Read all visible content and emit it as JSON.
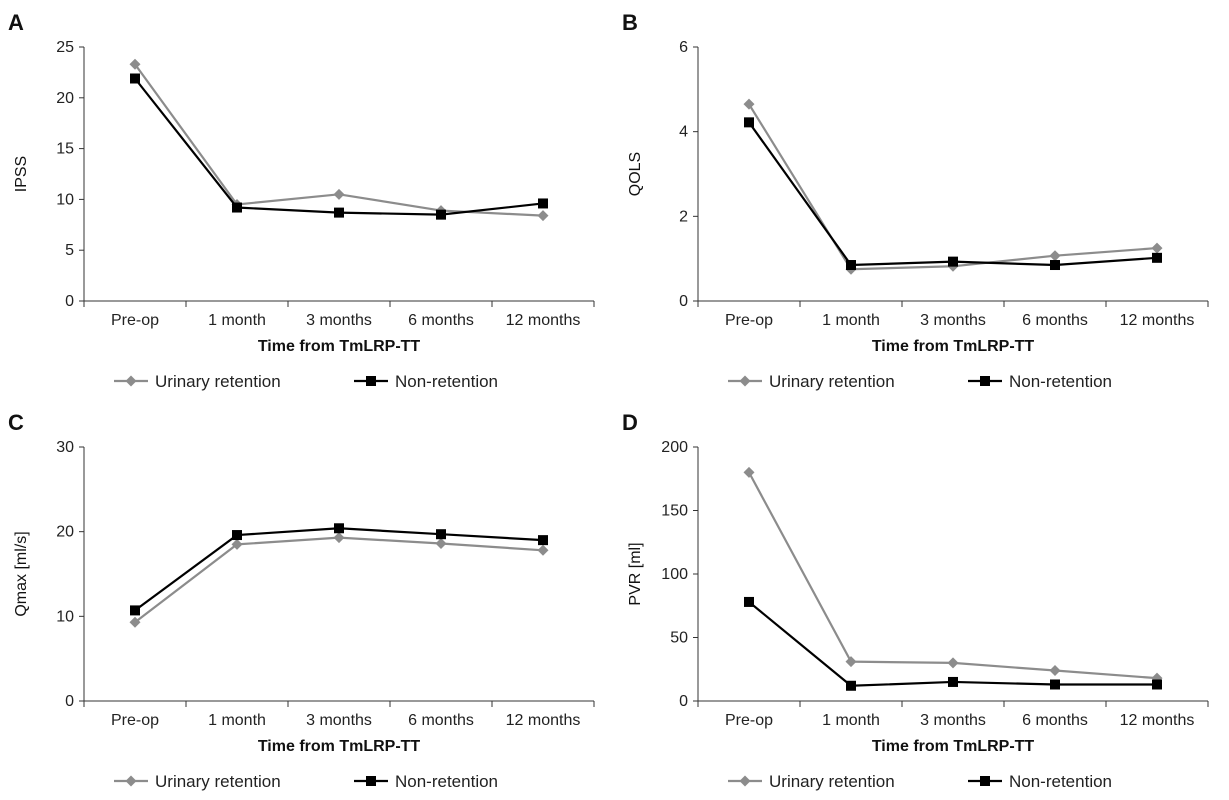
{
  "colors": {
    "urinary_retention": "#8c8c8c",
    "non_retention": "#000000"
  },
  "legend_markers": {
    "urinary_retention": "diamond",
    "non_retention": "square"
  },
  "chart_data": [
    {
      "panel": "A",
      "type": "line",
      "categories": [
        "Pre-op",
        "1 month",
        "3 months",
        "6 months",
        "12 months"
      ],
      "xlabel": "Time from TmLRP-TT",
      "ylabel": "IPSS",
      "ylim": [
        0,
        25
      ],
      "yticks": [
        0,
        5,
        10,
        15,
        20,
        25
      ],
      "grid": false,
      "legend": "bottom",
      "series": [
        {
          "name": "Urinary retention",
          "values": [
            23.3,
            9.5,
            10.5,
            8.9,
            8.4
          ]
        },
        {
          "name": "Non-retention",
          "values": [
            21.9,
            9.2,
            8.7,
            8.5,
            9.6
          ]
        }
      ]
    },
    {
      "panel": "B",
      "type": "line",
      "categories": [
        "Pre-op",
        "1 month",
        "3 months",
        "6 months",
        "12 months"
      ],
      "xlabel": "Time from TmLRP-TT",
      "ylabel": "QOLS",
      "ylim": [
        0,
        6
      ],
      "yticks": [
        0,
        2,
        4,
        6
      ],
      "grid": false,
      "legend": "bottom",
      "series": [
        {
          "name": "Urinary retention",
          "values": [
            4.65,
            0.75,
            0.82,
            1.07,
            1.25
          ]
        },
        {
          "name": "Non-retention",
          "values": [
            4.22,
            0.85,
            0.93,
            0.85,
            1.02
          ]
        }
      ]
    },
    {
      "panel": "C",
      "type": "line",
      "categories": [
        "Pre-op",
        "1 month",
        "3 months",
        "6 months",
        "12 months"
      ],
      "xlabel": "Time from TmLRP-TT",
      "ylabel": "Qmax [ml/s]",
      "ylim": [
        0,
        30
      ],
      "yticks": [
        0,
        10,
        20,
        30
      ],
      "grid": false,
      "legend": "bottom",
      "series": [
        {
          "name": "Urinary retention",
          "values": [
            9.3,
            18.5,
            19.3,
            18.6,
            17.8
          ]
        },
        {
          "name": "Non-retention",
          "values": [
            10.7,
            19.6,
            20.4,
            19.7,
            19.0
          ]
        }
      ]
    },
    {
      "panel": "D",
      "type": "line",
      "categories": [
        "Pre-op",
        "1 month",
        "3 months",
        "6 months",
        "12 months"
      ],
      "xlabel": "Time from TmLRP-TT",
      "ylabel": "PVR [ml]",
      "ylim": [
        0,
        200
      ],
      "yticks": [
        0,
        50,
        100,
        150,
        200
      ],
      "grid": false,
      "legend": "bottom",
      "series": [
        {
          "name": "Urinary retention",
          "values": [
            180,
            31,
            30,
            24,
            18
          ]
        },
        {
          "name": "Non-retention",
          "values": [
            78,
            12,
            15,
            13,
            13
          ]
        }
      ]
    }
  ]
}
